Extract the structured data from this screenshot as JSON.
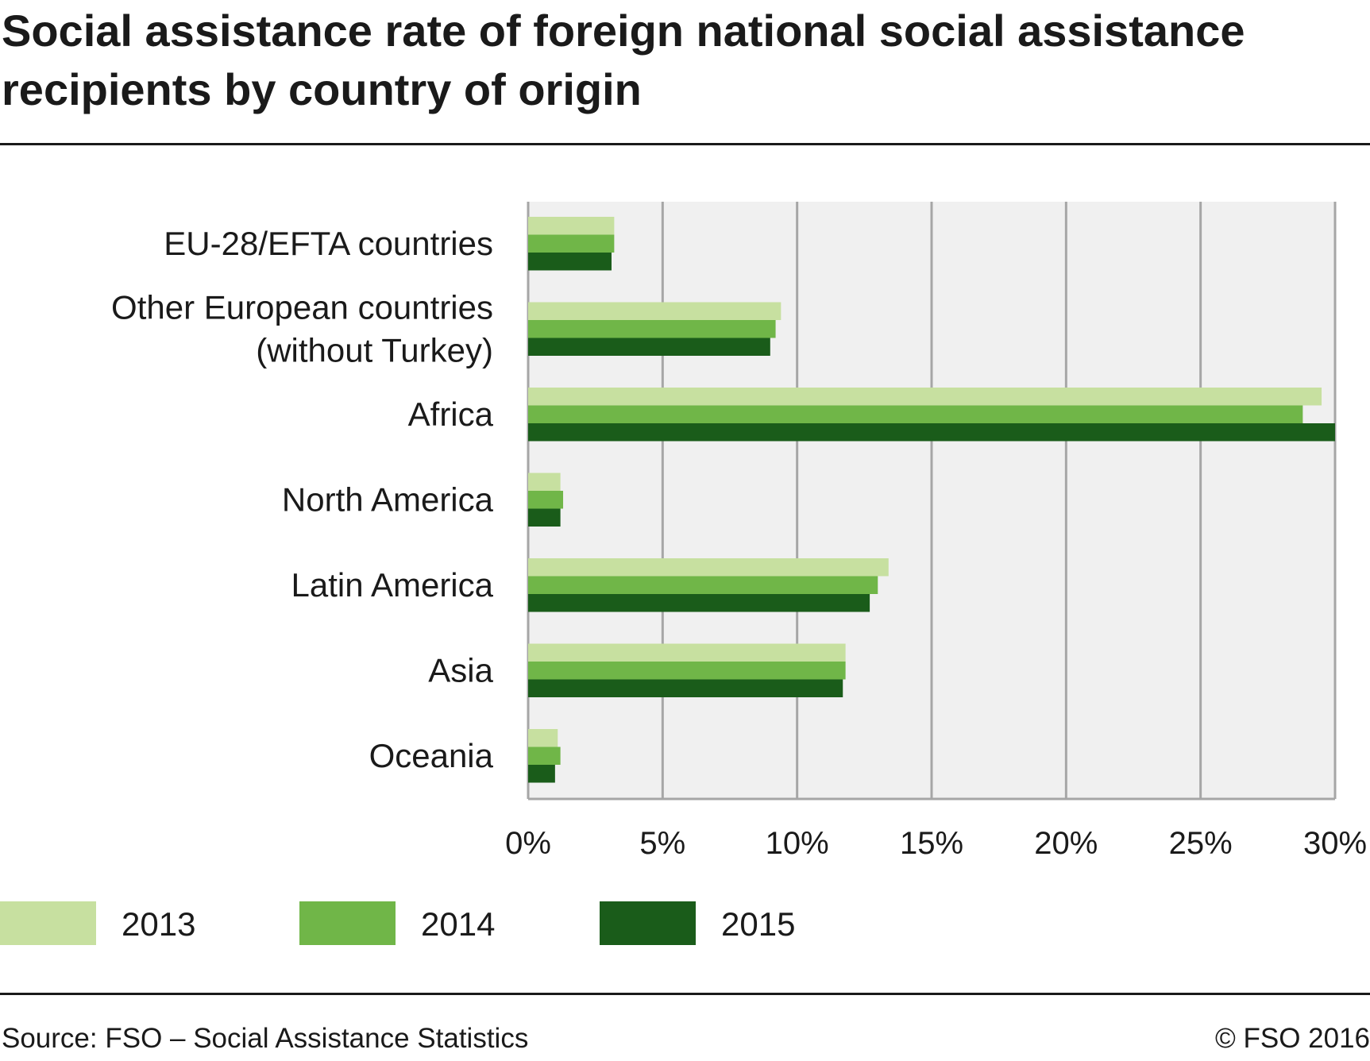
{
  "title": "Social assistance rate of foreign national social assistance recipients by country of origin",
  "source": "Source: FSO – Social Assistance Statistics",
  "copyright": "© FSO 2016",
  "chart_data": {
    "type": "bar",
    "orientation": "horizontal",
    "categories": [
      [
        "EU-28/EFTA countries"
      ],
      [
        "Other European countries",
        "(without Turkey)"
      ],
      [
        "Africa"
      ],
      [
        "North America"
      ],
      [
        "Latin America"
      ],
      [
        "Asia"
      ],
      [
        "Oceania"
      ]
    ],
    "series": [
      {
        "name": "2013",
        "color": "#c7e0a0",
        "values": [
          3.2,
          9.4,
          29.5,
          1.2,
          13.4,
          11.8,
          1.1
        ]
      },
      {
        "name": "2014",
        "color": "#70b648",
        "values": [
          3.2,
          9.2,
          28.8,
          1.3,
          13.0,
          11.8,
          1.2
        ]
      },
      {
        "name": "2015",
        "color": "#1a5c1a",
        "values": [
          3.1,
          9.0,
          30.0,
          1.2,
          12.7,
          11.7,
          1.0
        ]
      }
    ],
    "xlim": [
      0,
      30
    ],
    "xticks": [
      0,
      5,
      10,
      15,
      20,
      25,
      30
    ],
    "xtick_labels": [
      "0%",
      "5%",
      "10%",
      "15%",
      "20%",
      "25%",
      "30%"
    ],
    "grid": true,
    "legend_position": "bottom",
    "plot_background": "#f0f0f0",
    "grid_color": "#a6a6a6"
  }
}
